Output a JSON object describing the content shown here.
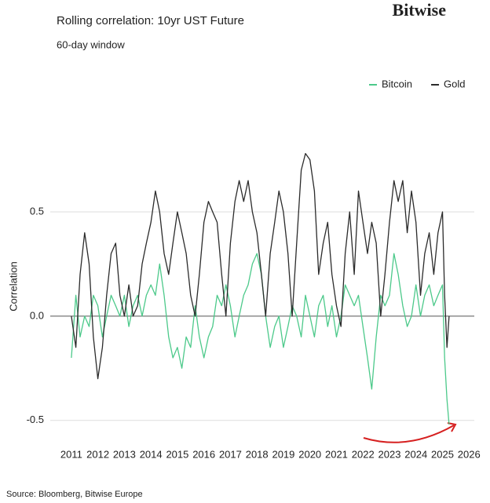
{
  "brand": "Bitwise",
  "chart_data": {
    "type": "line",
    "title": "Rolling correlation: 10yr UST Future",
    "subtitle": "60-day window",
    "ylabel": "Correlation",
    "source": "Source: Bloomberg, Bitwise Europe",
    "legend": "upper right",
    "grid": true,
    "xlim": [
      2010.5,
      2026.2
    ],
    "xticks": [
      2011,
      2012,
      2013,
      2014,
      2015,
      2016,
      2017,
      2018,
      2019,
      2020,
      2021,
      2022,
      2023,
      2024,
      2025,
      2026
    ],
    "ylim": [
      -0.55,
      0.85
    ],
    "yticks": [
      {
        "value": -0.5,
        "label": "-0.5"
      },
      {
        "value": 0,
        "label": "0.0"
      },
      {
        "value": 0.5,
        "label": "0.5"
      }
    ],
    "x": [
      2011,
      2011.17,
      2011.33,
      2011.5,
      2011.67,
      2011.83,
      2012,
      2012.17,
      2012.33,
      2012.5,
      2012.67,
      2012.83,
      2013,
      2013.17,
      2013.33,
      2013.5,
      2013.67,
      2013.83,
      2014,
      2014.17,
      2014.33,
      2014.5,
      2014.67,
      2014.83,
      2015,
      2015.17,
      2015.33,
      2015.5,
      2015.67,
      2015.83,
      2016,
      2016.17,
      2016.33,
      2016.5,
      2016.67,
      2016.83,
      2017,
      2017.17,
      2017.33,
      2017.5,
      2017.67,
      2017.83,
      2018,
      2018.17,
      2018.33,
      2018.5,
      2018.67,
      2018.83,
      2019,
      2019.17,
      2019.33,
      2019.5,
      2019.67,
      2019.83,
      2020,
      2020.17,
      2020.33,
      2020.5,
      2020.67,
      2020.83,
      2021,
      2021.17,
      2021.33,
      2021.5,
      2021.67,
      2021.83,
      2022,
      2022.17,
      2022.33,
      2022.5,
      2022.67,
      2022.83,
      2023,
      2023.17,
      2023.33,
      2023.5,
      2023.67,
      2023.83,
      2024,
      2024.17,
      2024.33,
      2024.5,
      2024.67,
      2024.83,
      2025,
      2025.08,
      2025.17,
      2025.25
    ],
    "series": [
      {
        "name": "Bitcoin",
        "color": "#4cc98a",
        "values": [
          -0.2,
          0.1,
          -0.1,
          0.0,
          -0.05,
          0.1,
          0.05,
          -0.1,
          0.0,
          0.1,
          0.05,
          0.0,
          0.1,
          -0.05,
          0.05,
          0.1,
          0.0,
          0.1,
          0.15,
          0.1,
          0.25,
          0.1,
          -0.1,
          -0.2,
          -0.15,
          -0.25,
          -0.1,
          -0.15,
          0.05,
          -0.1,
          -0.2,
          -0.1,
          -0.05,
          0.1,
          0.05,
          0.15,
          0.05,
          -0.1,
          0.0,
          0.1,
          0.15,
          0.25,
          0.3,
          0.2,
          0.0,
          -0.15,
          -0.05,
          0.0,
          -0.15,
          -0.05,
          0.05,
          0.0,
          -0.1,
          0.1,
          0.0,
          -0.1,
          0.05,
          0.1,
          -0.05,
          0.05,
          -0.1,
          0.0,
          0.15,
          0.1,
          0.05,
          0.1,
          -0.05,
          -0.2,
          -0.35,
          -0.1,
          0.1,
          0.05,
          0.1,
          0.3,
          0.2,
          0.05,
          -0.05,
          0.0,
          0.15,
          0.0,
          0.1,
          0.15,
          0.05,
          0.1,
          0.15,
          -0.2,
          -0.4,
          -0.52
        ]
      },
      {
        "name": "Gold",
        "color": "#2b2b2b",
        "values": [
          0.0,
          -0.15,
          0.2,
          0.4,
          0.25,
          -0.1,
          -0.3,
          -0.15,
          0.1,
          0.3,
          0.35,
          0.1,
          0.0,
          0.15,
          0.0,
          0.05,
          0.25,
          0.35,
          0.45,
          0.6,
          0.5,
          0.3,
          0.2,
          0.35,
          0.5,
          0.4,
          0.3,
          0.1,
          0.0,
          0.2,
          0.45,
          0.55,
          0.5,
          0.45,
          0.2,
          0.0,
          0.35,
          0.55,
          0.65,
          0.55,
          0.65,
          0.5,
          0.4,
          0.2,
          0.0,
          0.3,
          0.45,
          0.6,
          0.5,
          0.3,
          0.0,
          0.35,
          0.7,
          0.78,
          0.75,
          0.6,
          0.2,
          0.35,
          0.45,
          0.2,
          0.05,
          -0.05,
          0.3,
          0.5,
          0.2,
          0.6,
          0.45,
          0.3,
          0.45,
          0.35,
          0.0,
          0.2,
          0.45,
          0.65,
          0.55,
          0.65,
          0.4,
          0.6,
          0.45,
          0.1,
          0.3,
          0.4,
          0.2,
          0.4,
          0.5,
          0.1,
          -0.15,
          0.0
        ]
      }
    ]
  }
}
